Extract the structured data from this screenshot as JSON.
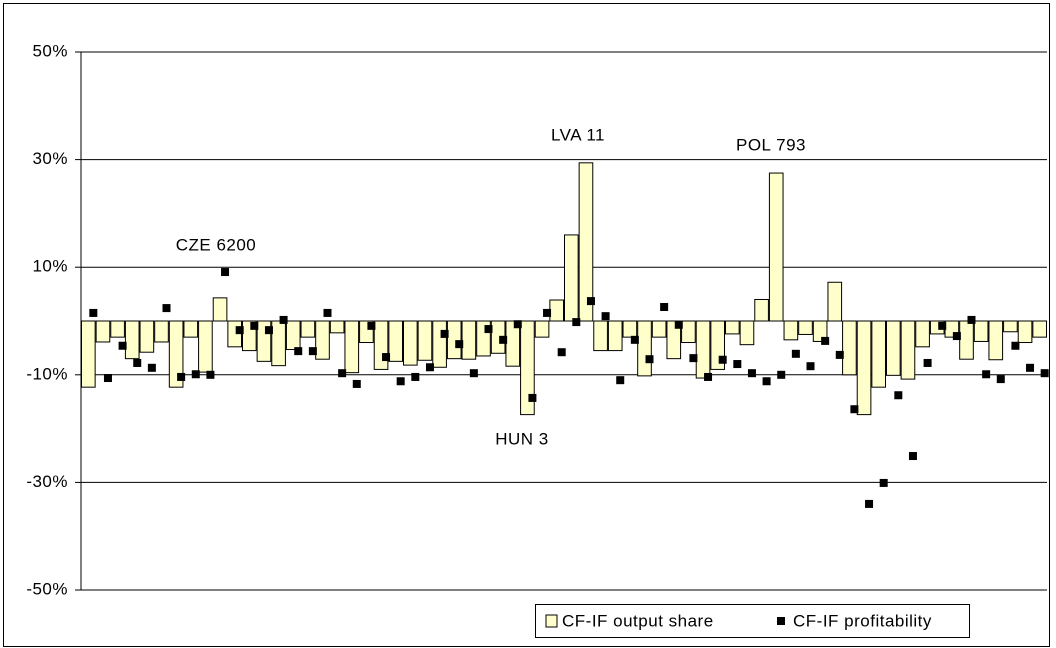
{
  "chart_data": {
    "type": "bar+scatter",
    "categories": [
      null,
      null,
      null,
      null,
      null,
      null,
      null,
      null,
      null,
      null,
      null,
      null,
      null,
      null,
      null,
      null,
      null,
      null,
      null,
      null,
      null,
      null,
      null,
      null,
      null,
      null,
      null,
      null,
      null,
      null,
      null,
      null,
      null,
      null,
      null,
      null,
      null,
      null,
      null,
      null,
      null,
      null,
      null,
      null,
      null,
      null,
      null,
      null,
      null,
      null,
      null,
      null,
      null,
      null,
      null,
      null,
      null,
      null,
      null,
      null,
      null,
      null,
      null,
      null,
      null,
      null
    ],
    "series": [
      {
        "name": "CF-IF output share",
        "color": "#ffffcc",
        "values": [
          -12.3,
          -3.9,
          -3,
          -7,
          -5.8,
          -3.9,
          -12.3,
          -3,
          -9.5,
          4.3,
          -4.8,
          -5.5,
          -7.5,
          -8.3,
          -5.3,
          -3,
          -7.1,
          -2.2,
          -9.6,
          -4,
          -9,
          -7.5,
          -8.2,
          -7.3,
          -8.6,
          -7,
          -7.1,
          -6.5,
          -6,
          -8.4,
          -17.4,
          -3,
          3.9,
          16,
          29.4,
          -5.5,
          -5.5,
          -3,
          -10.2,
          -3,
          -7,
          -4,
          -10.6,
          -9,
          -2.4,
          -4.4,
          4,
          27.5,
          -3.5,
          -2.5,
          -3.8,
          7.2,
          -10,
          -17.4,
          -12.3,
          -10.1,
          -10.8,
          -4.8,
          -2.4,
          -3,
          -7.1,
          -3.8,
          -7.2,
          -2,
          -4,
          -3
        ]
      },
      {
        "name": "CF-IF profitability",
        "color": "#000000",
        "values": [
          1.5,
          -10.6,
          -4.6,
          -7.8,
          -8.7,
          2.4,
          -10.4,
          -9.9,
          -10,
          9.1,
          -1.7,
          -0.9,
          -1.7,
          0.2,
          -5.6,
          -5.6,
          1.5,
          -9.7,
          -11.7,
          -0.9,
          -6.7,
          -11.2,
          -10.4,
          -8.6,
          -2.4,
          -4.3,
          -9.7,
          -1.5,
          -3.5,
          -0.6,
          -14.3,
          1.5,
          -5.8,
          -0.2,
          3.7,
          0.9,
          -11,
          -3.5,
          -7.1,
          2.6,
          -0.7,
          -6.9,
          -10.4,
          -7.2,
          -8,
          -9.7,
          -11.2,
          -10,
          -6.1,
          -8.4,
          -3.7,
          -6.3,
          -16.4,
          -34,
          -30.1,
          -13.8,
          -25.1,
          -7.8,
          -0.9,
          -2.8,
          0.2,
          -9.9,
          -10.8,
          -4.6,
          -8.7,
          -9.7
        ]
      }
    ],
    "ylim": [
      -50,
      50
    ],
    "yticks": [
      {
        "value": 50,
        "label": "50%"
      },
      {
        "value": 30,
        "label": "30%"
      },
      {
        "value": 10,
        "label": "10%"
      },
      {
        "value": -10,
        "label": "-10%"
      },
      {
        "value": -30,
        "label": "-30%"
      },
      {
        "value": -50,
        "label": "-50%"
      }
    ],
    "grid": true,
    "annotations": [
      "CZE 6200",
      "LVA 11",
      "POL 793",
      "HUN 3"
    ],
    "legend": "bottom-right"
  }
}
